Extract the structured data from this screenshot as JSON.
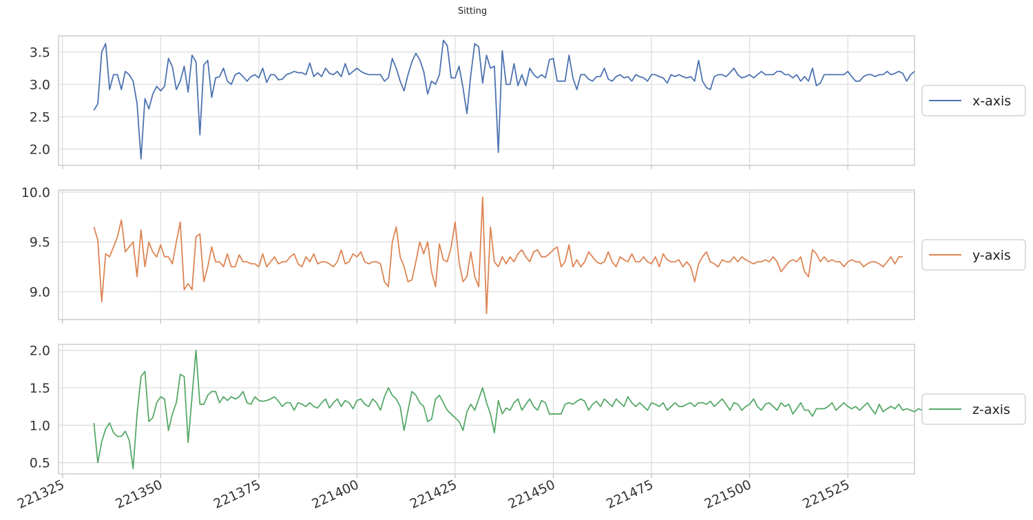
{
  "chart_data": {
    "type": "line",
    "title": "Sitting",
    "grid": true,
    "legend_placement": "right of each panel",
    "x_ticks": [
      221325,
      221350,
      221375,
      221400,
      221425,
      221450,
      221475,
      221500,
      221525
    ],
    "x_range": [
      221324,
      221542
    ],
    "x_start": 221333,
    "x_step": 1,
    "panels": [
      {
        "name": "x-axis",
        "color": "#4c72b0",
        "ylim": [
          1.75,
          3.75
        ],
        "y_ticks": [
          2.0,
          2.5,
          3.0,
          3.5
        ],
        "y_tick_labels": [
          "2.0",
          "2.5",
          "3.0",
          "3.5"
        ],
        "values": [
          2.6,
          2.7,
          3.5,
          3.63,
          2.92,
          3.15,
          3.15,
          2.92,
          3.2,
          3.15,
          3.05,
          2.7,
          1.85,
          2.78,
          2.62,
          2.85,
          2.97,
          2.9,
          2.97,
          3.4,
          3.27,
          2.92,
          3.05,
          3.28,
          2.88,
          3.45,
          3.35,
          2.22,
          3.3,
          3.37,
          2.8,
          3.1,
          3.12,
          3.25,
          3.05,
          3.0,
          3.15,
          3.18,
          3.12,
          3.05,
          3.12,
          3.15,
          3.1,
          3.25,
          3.03,
          3.15,
          3.15,
          3.07,
          3.08,
          3.15,
          3.17,
          3.2,
          3.18,
          3.18,
          3.15,
          3.33,
          3.12,
          3.18,
          3.12,
          3.25,
          3.17,
          3.15,
          3.2,
          3.12,
          3.32,
          3.15,
          3.2,
          3.25,
          3.2,
          3.17,
          3.15,
          3.15,
          3.15,
          3.15,
          3.05,
          3.1,
          3.4,
          3.25,
          3.05,
          2.9,
          3.15,
          3.35,
          3.48,
          3.38,
          3.2,
          2.85,
          3.05,
          3.0,
          3.15,
          3.68,
          3.6,
          3.1,
          3.1,
          3.28,
          2.95,
          2.55,
          3.15,
          3.63,
          3.58,
          3.02,
          3.45,
          3.25,
          3.28,
          1.95,
          3.52,
          3.0,
          3.0,
          3.32,
          2.98,
          3.15,
          2.98,
          3.25,
          3.15,
          3.1,
          3.15,
          3.1,
          3.38,
          3.4,
          3.05,
          3.05,
          3.05,
          3.45,
          3.1,
          2.92,
          3.15,
          3.15,
          3.08,
          3.05,
          3.12,
          3.12,
          3.25,
          3.08,
          3.05,
          3.12,
          3.15,
          3.1,
          3.12,
          3.05,
          3.15,
          3.12,
          3.1,
          3.05,
          3.15,
          3.15,
          3.12,
          3.1,
          3.02,
          3.15,
          3.12,
          3.15,
          3.12,
          3.1,
          3.12,
          3.05,
          3.37,
          3.05,
          2.95,
          2.92,
          3.12,
          3.15,
          3.15,
          3.12,
          3.18,
          3.25,
          3.15,
          3.1,
          3.12,
          3.15,
          3.1,
          3.15,
          3.2,
          3.15,
          3.15,
          3.15,
          3.2,
          3.2,
          3.15,
          3.15,
          3.1,
          3.15,
          3.05,
          3.12,
          3.05,
          3.25,
          2.98,
          3.02,
          3.15,
          3.15,
          3.15,
          3.15,
          3.15,
          3.15,
          3.2,
          3.12,
          3.05,
          3.05,
          3.12,
          3.15,
          3.15,
          3.12,
          3.15,
          3.15,
          3.2,
          3.15,
          3.17,
          3.2,
          3.17,
          3.05,
          3.15,
          3.2
        ]
      },
      {
        "name": "y-axis",
        "color": "#dd8452",
        "ylim": [
          8.72,
          10.02
        ],
        "y_ticks": [
          9.0,
          9.5,
          10.0
        ],
        "y_tick_labels": [
          "9.0",
          "9.5",
          "10.0"
        ],
        "values": [
          9.65,
          9.52,
          8.9,
          9.38,
          9.35,
          9.45,
          9.55,
          9.72,
          9.4,
          9.45,
          9.5,
          9.15,
          9.62,
          9.25,
          9.5,
          9.4,
          9.35,
          9.47,
          9.35,
          9.35,
          9.28,
          9.5,
          9.7,
          9.02,
          9.08,
          9.02,
          9.55,
          9.58,
          9.1,
          9.25,
          9.45,
          9.3,
          9.3,
          9.25,
          9.38,
          9.25,
          9.25,
          9.37,
          9.3,
          9.3,
          9.28,
          9.28,
          9.25,
          9.38,
          9.25,
          9.3,
          9.35,
          9.28,
          9.3,
          9.3,
          9.35,
          9.38,
          9.28,
          9.25,
          9.35,
          9.3,
          9.38,
          9.28,
          9.3,
          9.3,
          9.28,
          9.25,
          9.3,
          9.42,
          9.28,
          9.3,
          9.38,
          9.35,
          9.4,
          9.3,
          9.28,
          9.3,
          9.3,
          9.28,
          9.1,
          9.05,
          9.5,
          9.65,
          9.35,
          9.25,
          9.1,
          9.12,
          9.3,
          9.5,
          9.38,
          9.5,
          9.2,
          9.05,
          9.48,
          9.32,
          9.3,
          9.45,
          9.7,
          9.3,
          9.1,
          9.15,
          9.4,
          9.15,
          9.05,
          9.95,
          8.78,
          9.65,
          9.3,
          9.25,
          9.35,
          9.28,
          9.35,
          9.3,
          9.38,
          9.42,
          9.35,
          9.3,
          9.4,
          9.42,
          9.35,
          9.35,
          9.38,
          9.42,
          9.45,
          9.25,
          9.3,
          9.47,
          9.25,
          9.32,
          9.25,
          9.3,
          9.4,
          9.35,
          9.3,
          9.28,
          9.3,
          9.4,
          9.3,
          9.25,
          9.35,
          9.32,
          9.3,
          9.38,
          9.3,
          9.3,
          9.35,
          9.3,
          9.28,
          9.35,
          9.25,
          9.38,
          9.32,
          9.3,
          9.3,
          9.32,
          9.25,
          9.3,
          9.25,
          9.1,
          9.28,
          9.35,
          9.4,
          9.3,
          9.28,
          9.25,
          9.32,
          9.3,
          9.3,
          9.35,
          9.3,
          9.35,
          9.32,
          9.3,
          9.28,
          9.3,
          9.3,
          9.32,
          9.3,
          9.35,
          9.3,
          9.2,
          9.25,
          9.3,
          9.32,
          9.3,
          9.35,
          9.2,
          9.15,
          9.42,
          9.38,
          9.3,
          9.35,
          9.3,
          9.32,
          9.3,
          9.3,
          9.25,
          9.3,
          9.32,
          9.3,
          9.3,
          9.25,
          9.28,
          9.3,
          9.3,
          9.28,
          9.25,
          9.3,
          9.35,
          9.28,
          9.35,
          9.35
        ]
      },
      {
        "name": "z-axis",
        "color": "#55a868",
        "ylim": [
          0.35,
          2.08
        ],
        "y_ticks": [
          0.5,
          1.0,
          1.5,
          2.0
        ],
        "y_tick_labels": [
          "0.5",
          "1.0",
          "1.5",
          "2.0"
        ],
        "values": [
          1.03,
          0.5,
          0.78,
          0.95,
          1.03,
          0.9,
          0.85,
          0.85,
          0.92,
          0.8,
          0.42,
          1.15,
          1.65,
          1.72,
          1.05,
          1.1,
          1.3,
          1.38,
          1.35,
          0.93,
          1.15,
          1.3,
          1.68,
          1.65,
          0.77,
          1.38,
          2.0,
          1.28,
          1.28,
          1.4,
          1.45,
          1.45,
          1.3,
          1.38,
          1.33,
          1.38,
          1.35,
          1.38,
          1.45,
          1.3,
          1.28,
          1.38,
          1.33,
          1.32,
          1.33,
          1.35,
          1.38,
          1.32,
          1.25,
          1.3,
          1.3,
          1.2,
          1.3,
          1.28,
          1.25,
          1.3,
          1.25,
          1.23,
          1.3,
          1.35,
          1.23,
          1.3,
          1.35,
          1.25,
          1.33,
          1.3,
          1.22,
          1.33,
          1.35,
          1.28,
          1.25,
          1.35,
          1.3,
          1.2,
          1.38,
          1.5,
          1.4,
          1.35,
          1.25,
          0.93,
          1.2,
          1.45,
          1.4,
          1.3,
          1.25,
          1.05,
          1.08,
          1.35,
          1.4,
          1.3,
          1.2,
          1.15,
          1.1,
          1.05,
          0.93,
          1.18,
          1.28,
          1.2,
          1.35,
          1.5,
          1.3,
          1.15,
          0.9,
          1.33,
          1.15,
          1.23,
          1.2,
          1.3,
          1.35,
          1.2,
          1.28,
          1.35,
          1.25,
          1.2,
          1.33,
          1.3,
          1.15,
          1.15,
          1.15,
          1.15,
          1.28,
          1.3,
          1.28,
          1.32,
          1.35,
          1.32,
          1.2,
          1.28,
          1.32,
          1.25,
          1.35,
          1.3,
          1.25,
          1.35,
          1.3,
          1.25,
          1.38,
          1.3,
          1.25,
          1.3,
          1.25,
          1.2,
          1.3,
          1.28,
          1.25,
          1.3,
          1.2,
          1.25,
          1.3,
          1.25,
          1.25,
          1.28,
          1.3,
          1.25,
          1.3,
          1.3,
          1.28,
          1.32,
          1.25,
          1.3,
          1.35,
          1.28,
          1.2,
          1.3,
          1.28,
          1.2,
          1.25,
          1.28,
          1.35,
          1.25,
          1.2,
          1.28,
          1.3,
          1.25,
          1.2,
          1.3,
          1.25,
          1.28,
          1.15,
          1.22,
          1.3,
          1.2,
          1.2,
          1.12,
          1.22,
          1.22,
          1.22,
          1.25,
          1.3,
          1.2,
          1.25,
          1.3,
          1.25,
          1.22,
          1.25,
          1.2,
          1.25,
          1.3,
          1.22,
          1.15,
          1.28,
          1.18,
          1.22,
          1.25,
          1.22,
          1.28,
          1.2,
          1.22,
          1.2,
          1.18,
          1.22,
          1.2,
          1.25,
          1.15,
          1.28,
          1.2,
          1.12,
          1.22,
          1.25
        ]
      }
    ]
  }
}
